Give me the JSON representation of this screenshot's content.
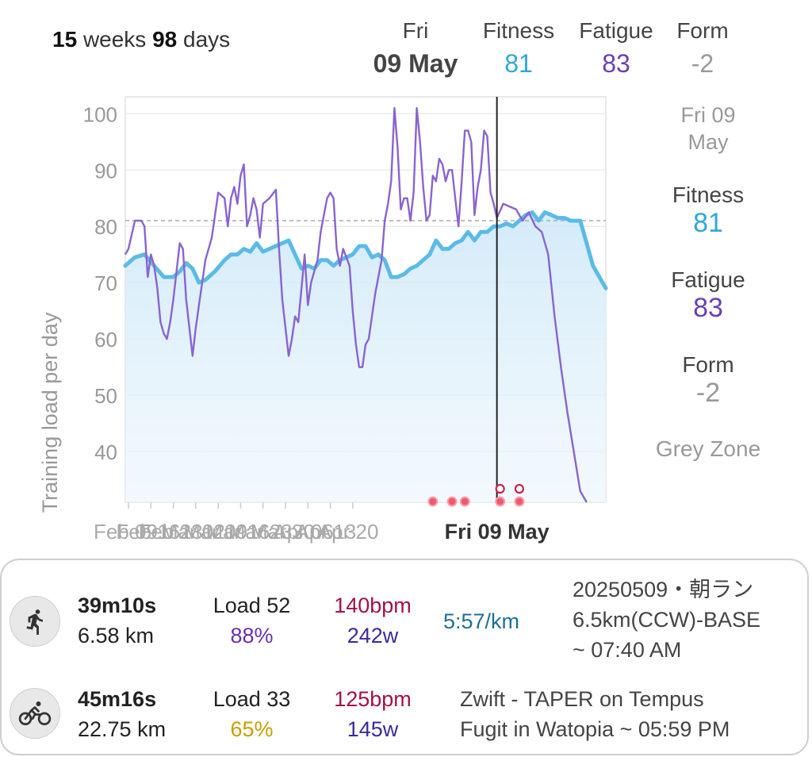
{
  "header": {
    "duration_weeks": "15",
    "duration_weeks_unit": "weeks",
    "duration_days": "98",
    "duration_days_unit": "days",
    "date_day": "Fri",
    "date_value": "09 May",
    "fitness_label": "Fitness",
    "fitness_value": "81",
    "fatigue_label": "Fatigue",
    "fatigue_value": "83",
    "form_label": "Form",
    "form_value": "-2"
  },
  "sidebar": {
    "date_line1": "Fri 09",
    "date_line2": "May",
    "fitness_label": "Fitness",
    "fitness_value": "81",
    "fatigue_label": "Fatigue",
    "fatigue_value": "83",
    "form_label": "Form",
    "form_value": "-2",
    "zone_label": "Grey Zone"
  },
  "colors": {
    "fitness": "#5bbbe6",
    "fatigue": "#8a63d2",
    "race_dot": "#f05a6e",
    "cursor": "#222222"
  },
  "chart_data": {
    "type": "line",
    "ylabel": "Training load per day",
    "ylim": [
      31,
      103
    ],
    "yticks": [
      40,
      50,
      60,
      70,
      80,
      90,
      100
    ],
    "x_tick_labels": [
      "Feb 09",
      "Feb 16",
      "Feb 23",
      "Mar 02",
      "Mar 09",
      "Mar 16",
      "Mar 23",
      "Mar 30",
      "Apr 06",
      "Apr 13",
      "Apr 20"
    ],
    "highlight_label": "Fri 09 May",
    "reference_value": 81,
    "series": [
      {
        "name": "Fitness",
        "points": [
          [
            0,
            73
          ],
          [
            3,
            74.5
          ],
          [
            6,
            75
          ],
          [
            9,
            73
          ],
          [
            12,
            71
          ],
          [
            15,
            71
          ],
          [
            17,
            72
          ],
          [
            19,
            73.5
          ],
          [
            21,
            72.5
          ],
          [
            23,
            70
          ],
          [
            25,
            70.5
          ],
          [
            28,
            72
          ],
          [
            31,
            74
          ],
          [
            33,
            75
          ],
          [
            35,
            75
          ],
          [
            37,
            76
          ],
          [
            39,
            75.5
          ],
          [
            41,
            77
          ],
          [
            43,
            75.5
          ],
          [
            45,
            76
          ],
          [
            47,
            76.5
          ],
          [
            49,
            77
          ],
          [
            51,
            77.5
          ],
          [
            53,
            75
          ],
          [
            55,
            72.5
          ],
          [
            57,
            73
          ],
          [
            59,
            72.5
          ],
          [
            61,
            74
          ],
          [
            63,
            74
          ],
          [
            65,
            73
          ],
          [
            67,
            74
          ],
          [
            69,
            74.5
          ],
          [
            71,
            75
          ],
          [
            73,
            76.5
          ],
          [
            75,
            76.5
          ],
          [
            77,
            74.5
          ],
          [
            79,
            75
          ],
          [
            81,
            74
          ],
          [
            83,
            71
          ],
          [
            85,
            71
          ],
          [
            87,
            71.5
          ],
          [
            89,
            72.5
          ],
          [
            91,
            73
          ],
          [
            93,
            74
          ],
          [
            95,
            75
          ],
          [
            97,
            77.5
          ],
          [
            99,
            76
          ],
          [
            101,
            76
          ],
          [
            103,
            77
          ],
          [
            105,
            77.5
          ],
          [
            107,
            79
          ],
          [
            109,
            77.5
          ],
          [
            111,
            79
          ],
          [
            113,
            79
          ],
          [
            115,
            80
          ],
          [
            117,
            80
          ],
          [
            119,
            80.5
          ],
          [
            121,
            80
          ],
          [
            123,
            81
          ],
          [
            125,
            82
          ],
          [
            127,
            82.5
          ],
          [
            129,
            81
          ],
          [
            131,
            82.5
          ],
          [
            133,
            82
          ],
          [
            135,
            81.5
          ],
          [
            137,
            81.5
          ],
          [
            139,
            81
          ],
          [
            141,
            81
          ],
          [
            142,
            81
          ],
          [
            144,
            77
          ],
          [
            146,
            73
          ],
          [
            148,
            71
          ],
          [
            150,
            69
          ]
        ]
      },
      {
        "name": "Fatigue",
        "points": [
          [
            0,
            75
          ],
          [
            1,
            76
          ],
          [
            3,
            81
          ],
          [
            5,
            81
          ],
          [
            6,
            80
          ],
          [
            7,
            71
          ],
          [
            8,
            75
          ],
          [
            9,
            73
          ],
          [
            10,
            69
          ],
          [
            11,
            63
          ],
          [
            12,
            61
          ],
          [
            13,
            60
          ],
          [
            14,
            63
          ],
          [
            15,
            67
          ],
          [
            16,
            72
          ],
          [
            17,
            77
          ],
          [
            18,
            76
          ],
          [
            19,
            67
          ],
          [
            20,
            62
          ],
          [
            21,
            57
          ],
          [
            22,
            62
          ],
          [
            23,
            66
          ],
          [
            25,
            74
          ],
          [
            27,
            78
          ],
          [
            29,
            86
          ],
          [
            31,
            85
          ],
          [
            32,
            80
          ],
          [
            33,
            85
          ],
          [
            34,
            87
          ],
          [
            35,
            84
          ],
          [
            36,
            89
          ],
          [
            37,
            91
          ],
          [
            38,
            80
          ],
          [
            39,
            82
          ],
          [
            40,
            85
          ],
          [
            41,
            83
          ],
          [
            42,
            78
          ],
          [
            43,
            84
          ],
          [
            45,
            85
          ],
          [
            47,
            86.5
          ],
          [
            48,
            76
          ],
          [
            49,
            67
          ],
          [
            50,
            62
          ],
          [
            51,
            57
          ],
          [
            52,
            60
          ],
          [
            53,
            64
          ],
          [
            54,
            63
          ],
          [
            55,
            69
          ],
          [
            56,
            75
          ],
          [
            57,
            66
          ],
          [
            58,
            70
          ],
          [
            60,
            74
          ],
          [
            61,
            79
          ],
          [
            63,
            85
          ],
          [
            64,
            86
          ],
          [
            65,
            85
          ],
          [
            66,
            76
          ],
          [
            67,
            73
          ],
          [
            68,
            76
          ],
          [
            70,
            73
          ],
          [
            71,
            65
          ],
          [
            72,
            59
          ],
          [
            73,
            55
          ],
          [
            74,
            55
          ],
          [
            75,
            59
          ],
          [
            76,
            60
          ],
          [
            78,
            68
          ],
          [
            80,
            74
          ],
          [
            81,
            81
          ],
          [
            82,
            84
          ],
          [
            83,
            88
          ],
          [
            84,
            101
          ],
          [
            85,
            94
          ],
          [
            86,
            83
          ],
          [
            87,
            85
          ],
          [
            88,
            85
          ],
          [
            89,
            81
          ],
          [
            90,
            86
          ],
          [
            91,
            101
          ],
          [
            92,
            95
          ],
          [
            93,
            87
          ],
          [
            94,
            81
          ],
          [
            95,
            82
          ],
          [
            96,
            89
          ],
          [
            97,
            88
          ],
          [
            98,
            92
          ],
          [
            99,
            91
          ],
          [
            100,
            88
          ],
          [
            101,
            90
          ],
          [
            102,
            90
          ],
          [
            103,
            85
          ],
          [
            104,
            80
          ],
          [
            105,
            88
          ],
          [
            106,
            97
          ],
          [
            107,
            97
          ],
          [
            108,
            95
          ],
          [
            109,
            82
          ],
          [
            110,
            87
          ],
          [
            111,
            90
          ],
          [
            112,
            97
          ],
          [
            113,
            96
          ],
          [
            114,
            86
          ],
          [
            115,
            84
          ],
          [
            116,
            81.5
          ],
          [
            118,
            84
          ],
          [
            120,
            83.5
          ],
          [
            122,
            83
          ],
          [
            124,
            81
          ],
          [
            126,
            82.5
          ],
          [
            128,
            80
          ],
          [
            130,
            79
          ],
          [
            132,
            75
          ],
          [
            134,
            64
          ],
          [
            136,
            55
          ],
          [
            138,
            47
          ],
          [
            140,
            40
          ],
          [
            142,
            33
          ],
          [
            144,
            31
          ]
        ]
      }
    ],
    "cursor_index": 116,
    "days_total": 150,
    "race_markers": [
      {
        "day": 96,
        "type": "dot"
      },
      {
        "day": 102,
        "type": "dot"
      },
      {
        "day": 106,
        "type": "dot"
      },
      {
        "day": 117,
        "type": "dot"
      },
      {
        "day": 117,
        "type": "ring"
      },
      {
        "day": 123,
        "type": "dot"
      },
      {
        "day": 123,
        "type": "ring"
      }
    ]
  },
  "activities": [
    {
      "icon": "run-icon",
      "duration": "39m10s",
      "distance": "6.58 km",
      "load_label": "Load 52",
      "load_pct": "88%",
      "hr": "140bpm",
      "power": "242w",
      "pace": "5:57/km",
      "title_lines": [
        "20250509・朝ラン",
        "6.5km(CCW)-BASE",
        "~ 07:40 AM"
      ]
    },
    {
      "icon": "bike-icon",
      "duration": "45m16s",
      "distance": "22.75 km",
      "load_label": "Load 33",
      "load_pct": "65%",
      "hr": "125bpm",
      "power": "145w",
      "pace": "",
      "title_lines": [
        "Zwift - TAPER on Tempus",
        "Fugit in Watopia ~ 05:59 PM"
      ]
    }
  ]
}
